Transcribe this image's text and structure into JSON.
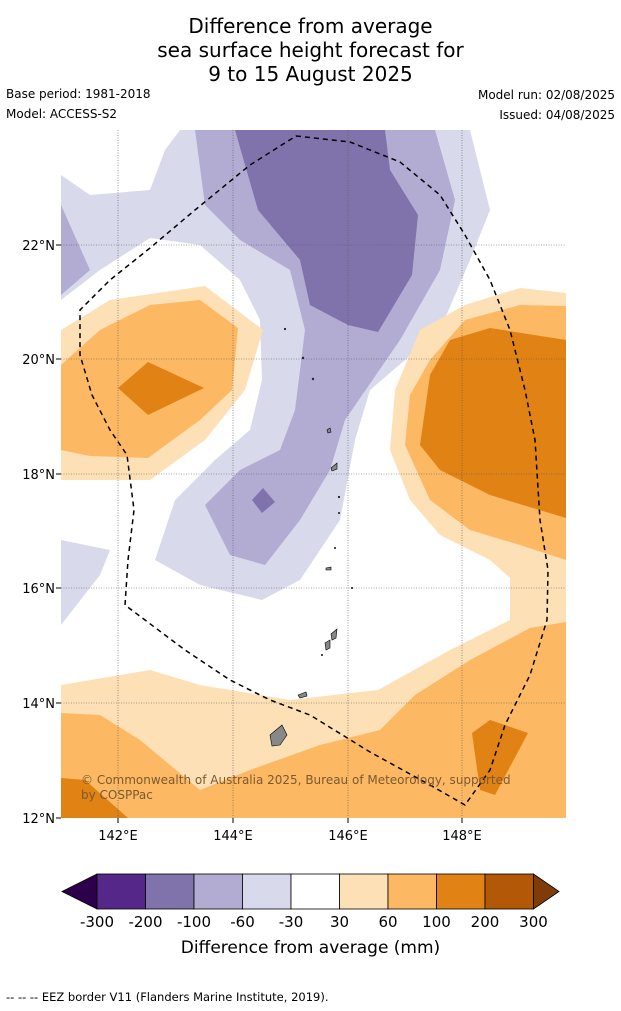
{
  "title": {
    "line1": "Difference from average",
    "line2": "sea surface height forecast for",
    "line3": "9 to 15 August 2025"
  },
  "meta": {
    "base_period": "Base period: 1981-2018",
    "model": "Model: ACCESS-S2",
    "model_run": "Model run: 02/08/2025",
    "issued": "Issued: 04/08/2025"
  },
  "map": {
    "lat_labels": [
      "22°N",
      "20°N",
      "18°N",
      "16°N",
      "14°N",
      "12°N"
    ],
    "lon_labels": [
      "142°E",
      "144°E",
      "146°E",
      "148°E"
    ],
    "copyright_line1": "© Commonwealth of Australia 2025, Bureau of Meteorology, supported",
    "copyright_line2": "by COSPPac"
  },
  "colorbar": {
    "ticks": [
      "-300",
      "-200",
      "-100",
      "-60",
      "-30",
      "30",
      "60",
      "100",
      "200",
      "300"
    ],
    "label": "Difference from average (mm)",
    "colors": {
      "below_-300": "#2d004b",
      "-300_-200": "#542788",
      "-200_-100": "#8073ac",
      "-100_-60": "#b2abd2",
      "-60_-30": "#d8daeb",
      "-30_30": "#ffffff",
      "30_60": "#fee0b6",
      "60_100": "#fdb863",
      "100_200": "#e08214",
      "200_300": "#b35806",
      "above_300": "#7f3b08"
    }
  },
  "footer": "--  --  -- EEZ border V11 (Flanders Marine Institute, 2019)."
}
